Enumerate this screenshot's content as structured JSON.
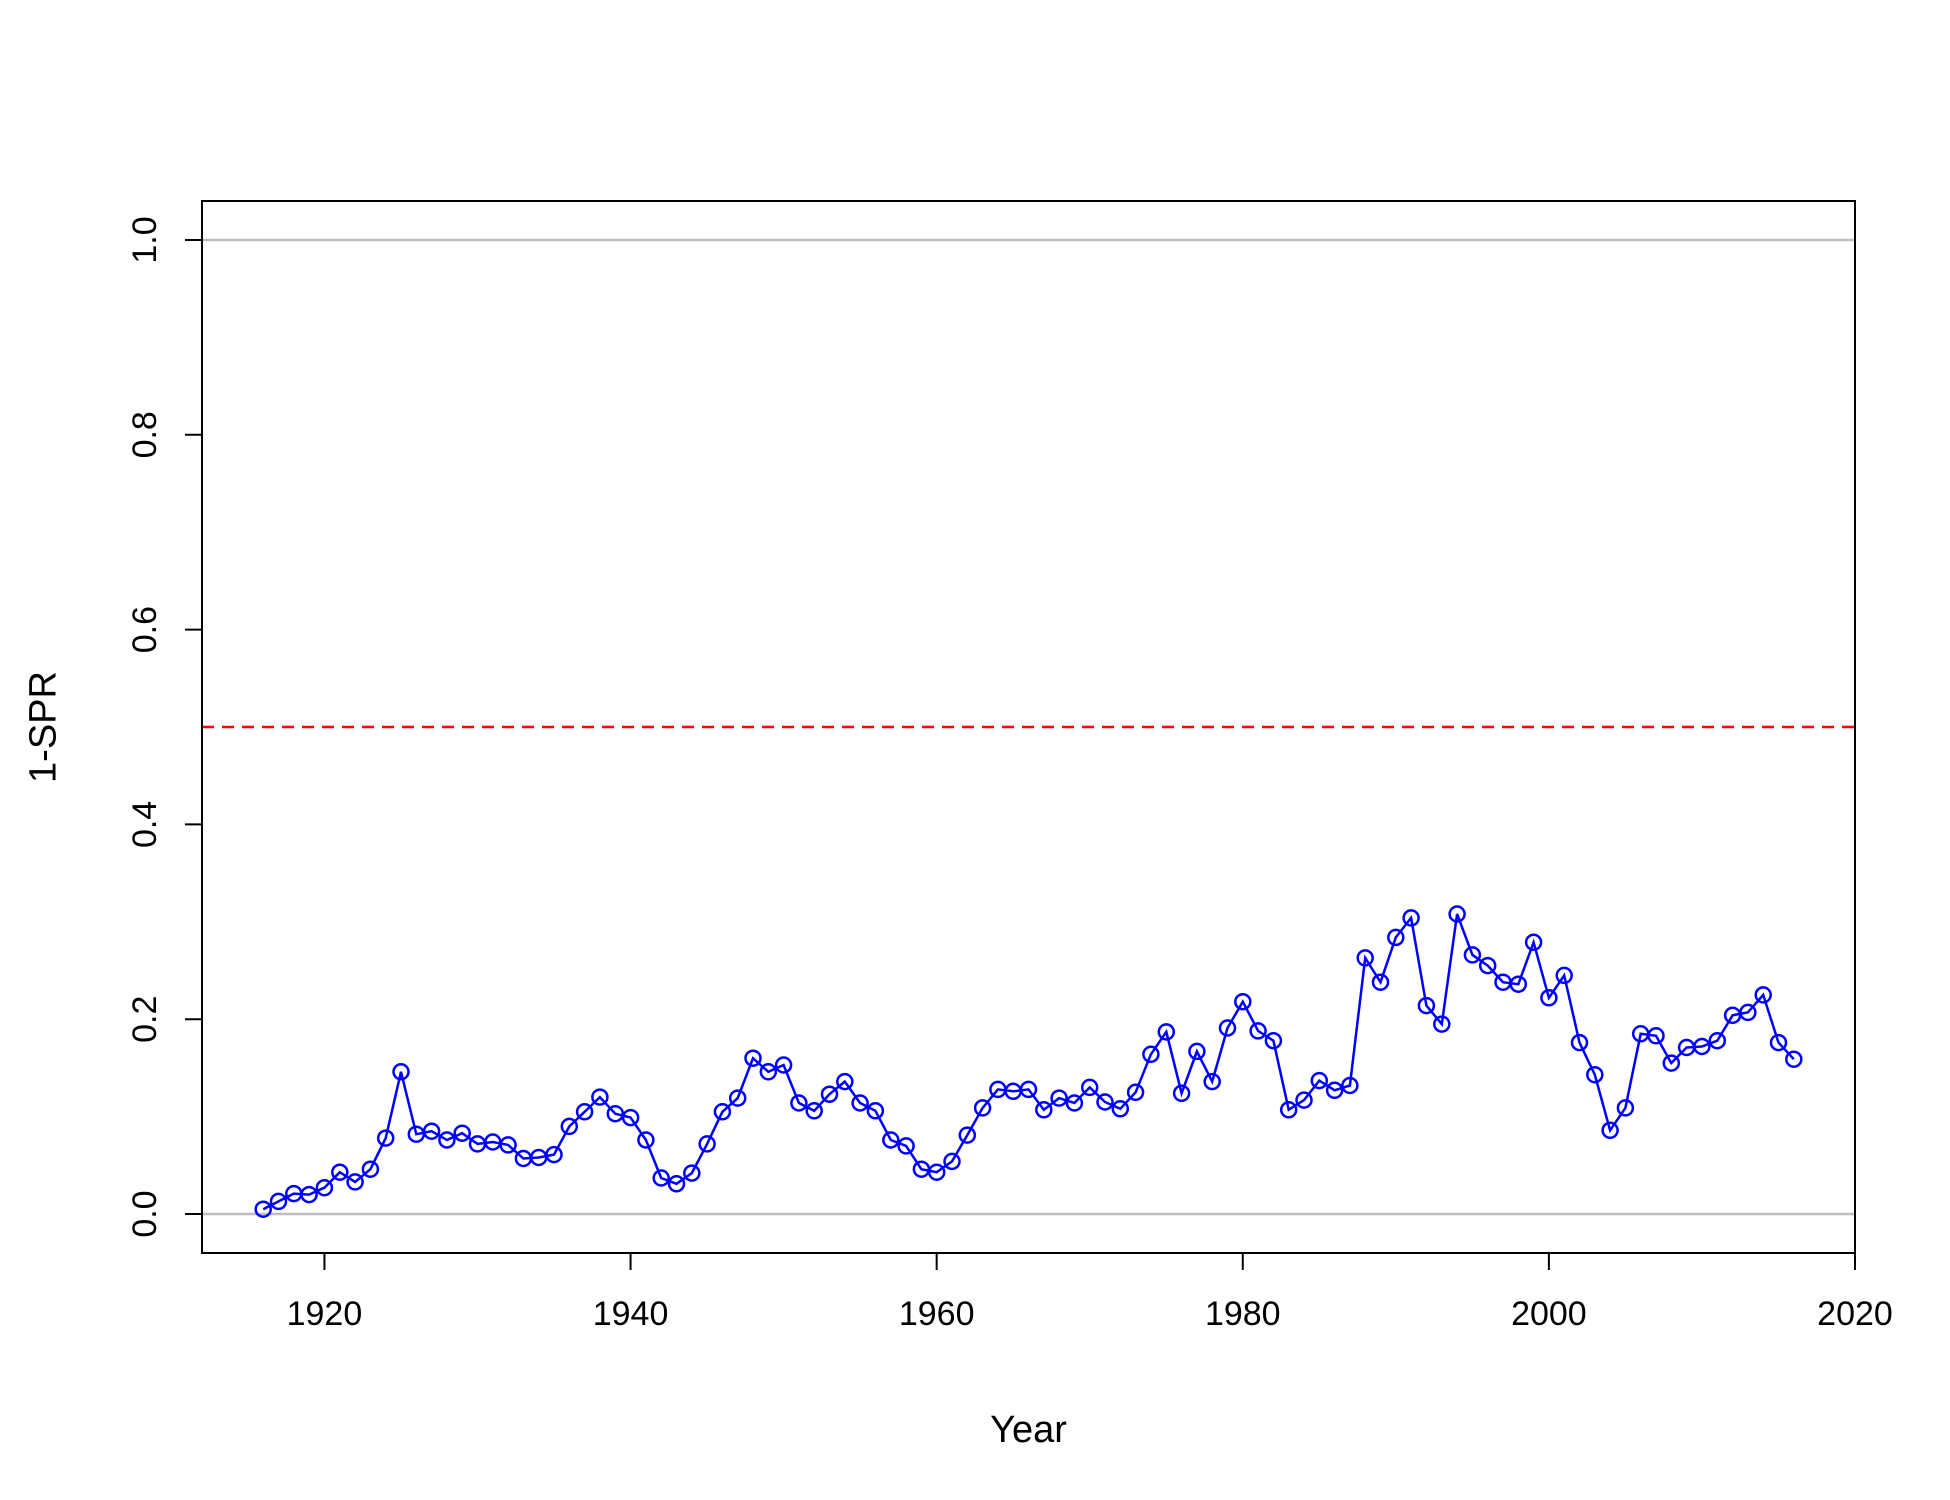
{
  "chart_data": {
    "type": "line",
    "title": "",
    "xlabel": "Year",
    "ylabel": "1-SPR",
    "xlim": [
      1912,
      2020
    ],
    "ylim": [
      -0.04,
      1.04
    ],
    "xticks": [
      1920,
      1940,
      1960,
      1980,
      2000,
      2020
    ],
    "yticks": [
      0.0,
      0.2,
      0.4,
      0.6,
      0.8,
      1.0
    ],
    "ytick_labels": [
      "0.0",
      "0.2",
      "0.4",
      "0.6",
      "0.8",
      "1.0"
    ],
    "grid": false,
    "legend": "none",
    "reference_lines": [
      {
        "y": 0.0,
        "color": "#bebebe",
        "style": "solid"
      },
      {
        "y": 1.0,
        "color": "#bebebe",
        "style": "solid"
      },
      {
        "y": 0.5,
        "color": "#ff0000",
        "style": "dashed"
      }
    ],
    "series": [
      {
        "color": "#0000ff",
        "marker": "open-circle",
        "x": [
          1916,
          1917,
          1918,
          1919,
          1920,
          1921,
          1922,
          1923,
          1924,
          1925,
          1926,
          1927,
          1928,
          1929,
          1930,
          1931,
          1932,
          1933,
          1934,
          1935,
          1936,
          1937,
          1938,
          1939,
          1940,
          1941,
          1942,
          1943,
          1944,
          1945,
          1946,
          1947,
          1948,
          1949,
          1950,
          1951,
          1952,
          1953,
          1954,
          1955,
          1956,
          1957,
          1958,
          1959,
          1960,
          1961,
          1962,
          1963,
          1964,
          1965,
          1966,
          1967,
          1968,
          1969,
          1970,
          1971,
          1972,
          1973,
          1974,
          1975,
          1976,
          1977,
          1978,
          1979,
          1980,
          1981,
          1982,
          1983,
          1984,
          1985,
          1986,
          1987,
          1988,
          1989,
          1990,
          1991,
          1992,
          1993,
          1994,
          1995,
          1996,
          1997,
          1998,
          1999,
          2000,
          2001,
          2002,
          2003,
          2004,
          2005,
          2006,
          2007,
          2008,
          2009,
          2010,
          2011,
          2012,
          2013,
          2014,
          2015,
          2016
        ],
        "y": [
          0.005,
          0.013,
          0.021,
          0.02,
          0.027,
          0.043,
          0.033,
          0.046,
          0.078,
          0.146,
          0.082,
          0.085,
          0.076,
          0.083,
          0.072,
          0.074,
          0.071,
          0.057,
          0.058,
          0.061,
          0.09,
          0.105,
          0.12,
          0.103,
          0.099,
          0.076,
          0.037,
          0.031,
          0.042,
          0.072,
          0.105,
          0.119,
          0.16,
          0.146,
          0.153,
          0.114,
          0.106,
          0.123,
          0.136,
          0.114,
          0.106,
          0.076,
          0.07,
          0.046,
          0.043,
          0.054,
          0.081,
          0.109,
          0.128,
          0.126,
          0.128,
          0.107,
          0.119,
          0.114,
          0.13,
          0.115,
          0.108,
          0.125,
          0.164,
          0.187,
          0.124,
          0.167,
          0.136,
          0.191,
          0.218,
          0.188,
          0.178,
          0.107,
          0.117,
          0.137,
          0.127,
          0.132,
          0.263,
          0.238,
          0.284,
          0.304,
          0.214,
          0.195,
          0.308,
          0.266,
          0.255,
          0.238,
          0.236,
          0.279,
          0.222,
          0.245,
          0.176,
          0.143,
          0.086,
          0.109,
          0.185,
          0.183,
          0.155,
          0.171,
          0.172,
          0.178,
          0.204,
          0.207,
          0.225,
          0.176,
          0.159
        ]
      }
    ]
  }
}
